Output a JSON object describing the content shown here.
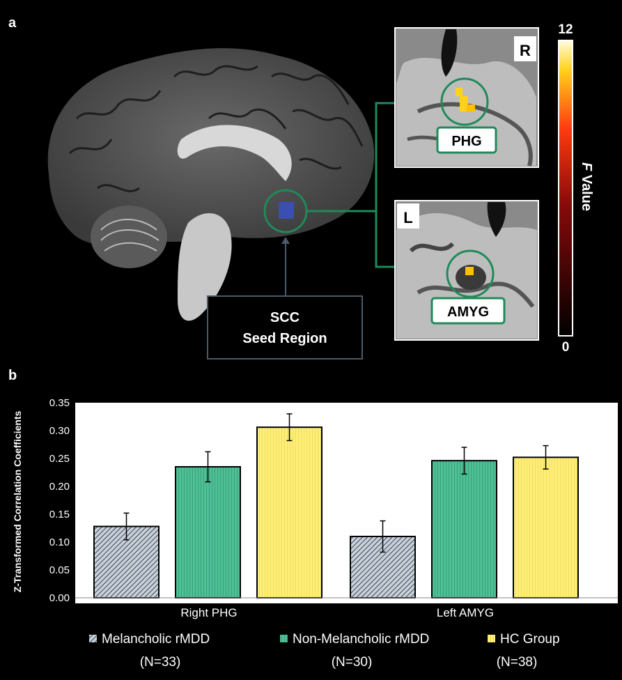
{
  "panel_a": {
    "label": "a",
    "seed_region": {
      "line1": "SCC",
      "line2": "Seed Region"
    },
    "inset_right": {
      "hemisphere": "R",
      "region": "PHG"
    },
    "inset_left": {
      "hemisphere": "L",
      "region": "AMYG"
    },
    "colorbar": {
      "max": "12",
      "min": "0",
      "label_italic": "F",
      "label_rest": " Value"
    },
    "colors": {
      "seed": "#3a4fb0",
      "connector": "#1f8a5a",
      "seed_box": "#4a5a6a",
      "highlight": "#ffd21a"
    }
  },
  "panel_b": {
    "label": "b"
  },
  "chart_data": {
    "type": "bar",
    "categories": [
      "Right PHG",
      "Left AMYG"
    ],
    "ylabel": "Z-Transformed Correlation Coefficients",
    "xlabel": "",
    "ylim": [
      0,
      0.35
    ],
    "yticks": [
      "0.00",
      "0.05",
      "0.10",
      "0.15",
      "0.20",
      "0.25",
      "0.30",
      "0.35"
    ],
    "grid": false,
    "legend_position": "bottom",
    "series": [
      {
        "name": "Melancholic rMDD",
        "n_label": "(N=33)",
        "color": "#c8d0da",
        "pattern": "diagonal-hatch",
        "values": [
          0.128,
          0.11
        ],
        "errors": [
          0.024,
          0.028
        ]
      },
      {
        "name": "Non-Melancholic rMDD",
        "n_label": "(N=30)",
        "color": "#4fbf96",
        "pattern": "vertical-lines",
        "values": [
          0.235,
          0.246
        ],
        "errors": [
          0.027,
          0.024
        ]
      },
      {
        "name": "HC Group",
        "n_label": "(N=38)",
        "color": "#ffef7a",
        "pattern": "vertical-lines",
        "values": [
          0.306,
          0.252
        ],
        "errors": [
          0.024,
          0.021
        ]
      }
    ]
  }
}
